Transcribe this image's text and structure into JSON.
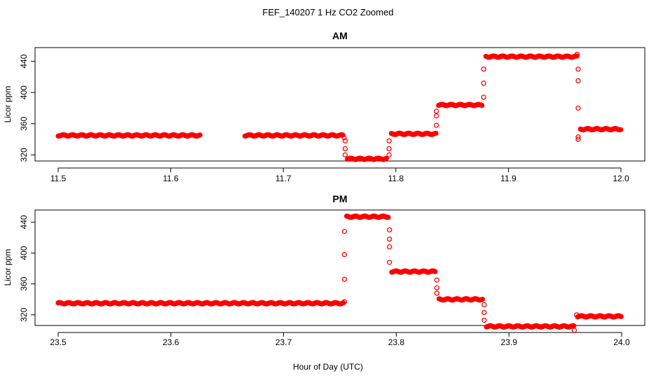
{
  "figure": {
    "title": "FEF_140207  1 Hz CO2 Zoomed",
    "xlabel": "Hour of Day (UTC)",
    "point_color": "#ff0000"
  },
  "chart_data": [
    {
      "type": "scatter",
      "title": "AM",
      "xlabel": "Hour of Day (UTC)",
      "ylabel": "Licor ppm",
      "xlim": [
        11.5,
        12.0
      ],
      "ylim": [
        314,
        454
      ],
      "xticks": [
        "11.5",
        "11.6",
        "11.7",
        "11.8",
        "11.9",
        "12.0"
      ],
      "yticks": [
        "320",
        "360",
        "400",
        "440"
      ],
      "grid": false,
      "series": [
        {
          "segments": [
            {
              "x_start": 11.5,
              "x_end": 11.626,
              "y": 345
            },
            {
              "x_start": 11.666,
              "x_end": 11.753,
              "y": 345
            },
            {
              "x_start": 11.757,
              "x_end": 11.792,
              "y": 315
            },
            {
              "x_start": 11.796,
              "x_end": 11.836,
              "y": 347
            },
            {
              "x_start": 11.838,
              "x_end": 11.877,
              "y": 384
            },
            {
              "x_start": 11.88,
              "x_end": 11.961,
              "y": 446
            },
            {
              "x_start": 11.964,
              "x_end": 12.0,
              "y": 353
            }
          ],
          "transitions": [
            [
              11.754,
              342
            ],
            [
              11.755,
              338
            ],
            [
              11.755,
              328
            ],
            [
              11.755,
              320
            ],
            [
              11.794,
              320
            ],
            [
              11.794,
              328
            ],
            [
              11.794,
              338
            ],
            [
              11.836,
              358
            ],
            [
              11.836,
              370
            ],
            [
              11.836,
              376
            ],
            [
              11.878,
              394
            ],
            [
              11.878,
              412
            ],
            [
              11.878,
              430
            ],
            [
              11.962,
              430
            ],
            [
              11.962,
              415
            ],
            [
              11.962,
              380
            ],
            [
              11.962,
              343
            ],
            [
              11.962,
              340
            ],
            [
              11.961,
              449
            ]
          ]
        }
      ]
    },
    {
      "type": "scatter",
      "title": "PM",
      "xlabel": "Hour of Day (UTC)",
      "ylabel": "Licor ppm",
      "xlim": [
        23.5,
        24.0
      ],
      "ylim": [
        308,
        453
      ],
      "xticks": [
        "23.5",
        "23.6",
        "23.7",
        "23.8",
        "23.9",
        "24.0"
      ],
      "yticks": [
        "320",
        "360",
        "400",
        "440"
      ],
      "grid": false,
      "series": [
        {
          "segments": [
            {
              "x_start": 23.5,
              "x_end": 23.753,
              "y": 335
            },
            {
              "x_start": 23.756,
              "x_end": 23.793,
              "y": 447
            },
            {
              "x_start": 23.796,
              "x_end": 23.835,
              "y": 376
            },
            {
              "x_start": 23.838,
              "x_end": 23.877,
              "y": 340
            },
            {
              "x_start": 23.88,
              "x_end": 23.958,
              "y": 305
            },
            {
              "x_start": 23.961,
              "x_end": 24.0,
              "y": 318
            }
          ],
          "transitions": [
            [
              23.754,
              337
            ],
            [
              23.754,
              366
            ],
            [
              23.754,
              398
            ],
            [
              23.754,
              428
            ],
            [
              23.794,
              430
            ],
            [
              23.794,
              418
            ],
            [
              23.794,
              408
            ],
            [
              23.794,
              388
            ],
            [
              23.836,
              365
            ],
            [
              23.836,
              355
            ],
            [
              23.836,
              348
            ],
            [
              23.878,
              333
            ],
            [
              23.878,
              323
            ],
            [
              23.878,
              313
            ],
            [
              23.958,
              300
            ],
            [
              23.96,
              320
            ]
          ]
        }
      ]
    }
  ]
}
